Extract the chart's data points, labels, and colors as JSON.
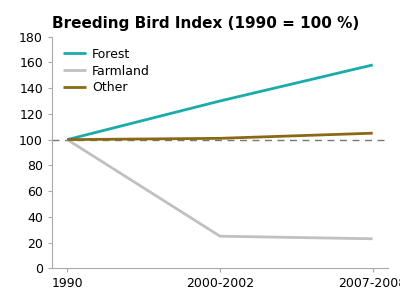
{
  "title": "Breeding Bird Index (1990 = 100 %)",
  "x_labels": [
    "1990",
    "2000-2002",
    "2007-2008"
  ],
  "x_positions": [
    0,
    1,
    2
  ],
  "series": [
    {
      "label": "Forest",
      "values": [
        100,
        130,
        158
      ],
      "color": "#1aabab",
      "linewidth": 2.0
    },
    {
      "label": "Farmland",
      "values": [
        100,
        25,
        23
      ],
      "color": "#c0c0c0",
      "linewidth": 2.0
    },
    {
      "label": "Other",
      "values": [
        100,
        101,
        105
      ],
      "color": "#8b6914",
      "linewidth": 2.0
    }
  ],
  "dashed_line_y": 100,
  "ylim": [
    0,
    180
  ],
  "yticks": [
    0,
    20,
    40,
    60,
    80,
    100,
    120,
    140,
    160,
    180
  ],
  "xlim": [
    -0.1,
    2.1
  ],
  "background_color": "#ffffff",
  "spine_color": "#aaaaaa",
  "title_fontsize": 11,
  "tick_fontsize": 9,
  "legend_fontsize": 9
}
